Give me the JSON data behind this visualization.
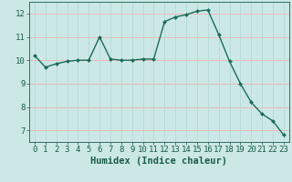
{
  "x": [
    0,
    1,
    2,
    3,
    4,
    5,
    6,
    7,
    8,
    9,
    10,
    11,
    12,
    13,
    14,
    15,
    16,
    17,
    18,
    19,
    20,
    21,
    22,
    23
  ],
  "y": [
    10.2,
    9.7,
    9.85,
    9.95,
    10.0,
    10.0,
    11.0,
    10.05,
    10.0,
    10.0,
    10.05,
    10.05,
    11.65,
    11.85,
    11.95,
    12.1,
    12.15,
    11.1,
    9.95,
    9.0,
    8.2,
    7.7,
    7.4,
    6.8
  ],
  "xlabel": "Humidex (Indice chaleur)",
  "ylim": [
    6.5,
    12.5
  ],
  "xlim": [
    -0.5,
    23.5
  ],
  "yticks": [
    7,
    8,
    9,
    10,
    11,
    12
  ],
  "xticks": [
    0,
    1,
    2,
    3,
    4,
    5,
    6,
    7,
    8,
    9,
    10,
    11,
    12,
    13,
    14,
    15,
    16,
    17,
    18,
    19,
    20,
    21,
    22,
    23
  ],
  "line_color": "#1a6b5a",
  "marker_color": "#1a6b5a",
  "bg_color": "#cce8e6",
  "grid_color_h": "#e8b8b8",
  "grid_color_v": "#b8dada",
  "tick_label_color": "#1a5c4a",
  "xlabel_color": "#1a5c4a",
  "xlabel_fontsize": 7.5,
  "tick_fontsize": 6.5
}
